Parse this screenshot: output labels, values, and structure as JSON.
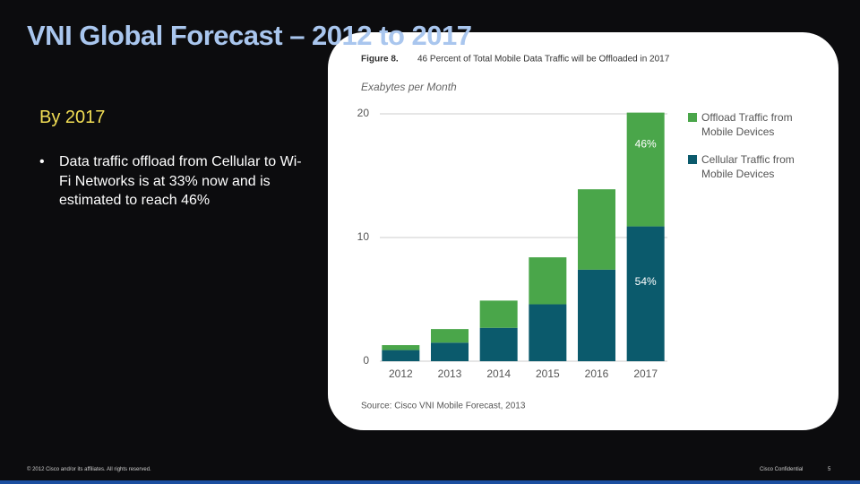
{
  "slide": {
    "title": "VNI Global Forecast – 2012 to 2017",
    "heading": "By 2017",
    "bullet": "Data traffic offload from Cellular to Wi-Fi Networks is at 33% now and is estimated to reach 46%",
    "footer_left": "© 2012 Cisco and/or its affiliates. All rights reserved.",
    "footer_center": "Cisco Confidential",
    "page_number": "5"
  },
  "chart_data": {
    "type": "stacked_bar",
    "figure_label": "Figure 8.",
    "title": "46 Percent of Total Mobile Data Traffic will be Offloaded in 2017",
    "y_label": "Exabytes per Month",
    "source": "Source: Cisco VNI Mobile Forecast, 2013",
    "categories": [
      "2012",
      "2013",
      "2014",
      "2015",
      "2016",
      "2017"
    ],
    "series": [
      {
        "name": "Cellular Traffic from Mobile Devices",
        "color": "#0b5a6c",
        "values": [
          0.9,
          1.5,
          2.7,
          4.6,
          7.4,
          10.9
        ]
      },
      {
        "name": "Offload Traffic from Mobile Devices",
        "color": "#4aa64a",
        "values": [
          0.4,
          1.1,
          2.2,
          3.8,
          6.5,
          9.2
        ]
      }
    ],
    "annotations": [
      "54%",
      "46%"
    ],
    "ylim": [
      0,
      20
    ],
    "yticks": [
      0,
      10,
      20
    ],
    "grid": true
  }
}
